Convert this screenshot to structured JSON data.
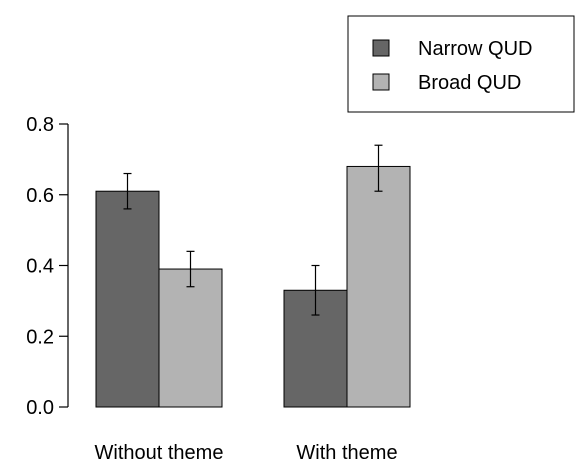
{
  "chart_data": {
    "type": "bar",
    "categories": [
      "Without theme",
      "With theme"
    ],
    "series": [
      {
        "name": "Narrow QUD",
        "values": [
          0.61,
          0.33
        ],
        "error_low": [
          0.56,
          0.26
        ],
        "error_high": [
          0.66,
          0.4
        ],
        "color": "#666666"
      },
      {
        "name": "Broad QUD",
        "values": [
          0.39,
          0.68
        ],
        "error_low": [
          0.34,
          0.61
        ],
        "error_high": [
          0.44,
          0.74
        ],
        "color": "#b3b3b3"
      }
    ],
    "y_ticks": [
      "0.0",
      "0.2",
      "0.4",
      "0.6",
      "0.8"
    ],
    "y_tick_values": [
      0,
      0.2,
      0.4,
      0.6,
      0.8
    ],
    "ylim": [
      0,
      0.8
    ],
    "legend_position": "top-right",
    "grid": false
  }
}
